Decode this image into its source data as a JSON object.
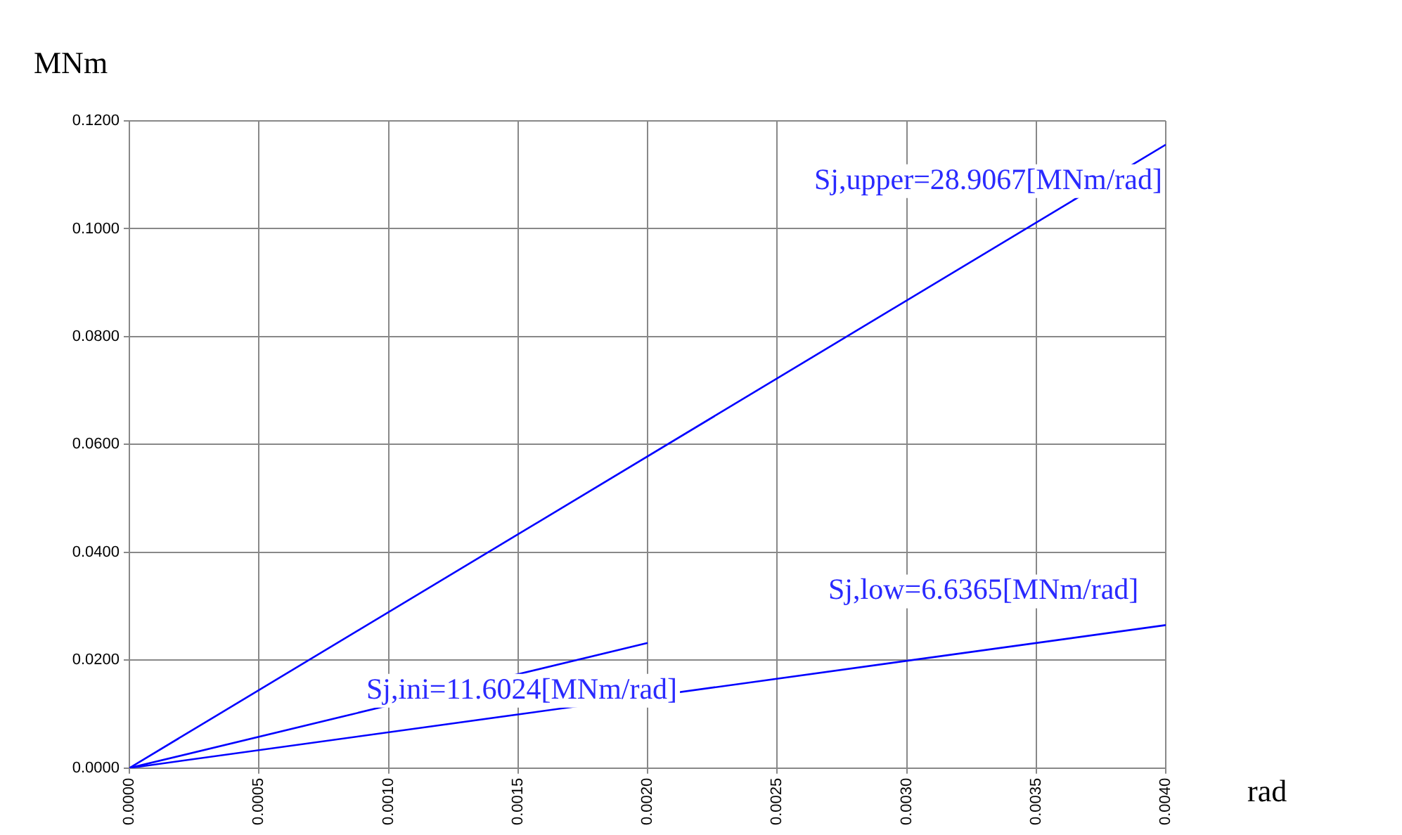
{
  "chart_data": {
    "type": "line",
    "xlabel": "rad",
    "ylabel": "MNm",
    "xlim": [
      0,
      0.004
    ],
    "ylim": [
      0,
      0.12
    ],
    "xticks": [
      {
        "value": 0,
        "label": "0.0000"
      },
      {
        "value": 0.0005,
        "label": "0.0005"
      },
      {
        "value": 0.001,
        "label": "0.0010"
      },
      {
        "value": 0.0015,
        "label": "0.0015"
      },
      {
        "value": 0.002,
        "label": "0.0020"
      },
      {
        "value": 0.0025,
        "label": "0.0025"
      },
      {
        "value": 0.003,
        "label": "0.0030"
      },
      {
        "value": 0.0035,
        "label": "0.0035"
      },
      {
        "value": 0.004,
        "label": "0.0040"
      }
    ],
    "yticks": [
      {
        "value": 0,
        "label": "0.0000"
      },
      {
        "value": 0.02,
        "label": "0.0200"
      },
      {
        "value": 0.04,
        "label": "0.0400"
      },
      {
        "value": 0.06,
        "label": "0.0600"
      },
      {
        "value": 0.08,
        "label": "0.0800"
      },
      {
        "value": 0.1,
        "label": "0.1000"
      },
      {
        "value": 0.12,
        "label": "0.1200"
      }
    ],
    "series": [
      {
        "color": "#0000ff",
        "x": [
          0,
          0.004
        ],
        "values": [
          0,
          0.1156
        ]
      },
      {
        "color": "#0000ff",
        "x": [
          0,
          0.002
        ],
        "values": [
          0,
          0.0232
        ]
      },
      {
        "color": "#0000ff",
        "x": [
          0,
          0.004
        ],
        "values": [
          0,
          0.0265
        ]
      }
    ],
    "annotations": [
      "Sj,upper=28.9067[MNm/rad]",
      "Sj,ini=11.6024[MNm/rad]",
      "Sj,low=6.6365[MNm/rad]"
    ],
    "grid": true,
    "legend": false,
    "marker": "none",
    "line_style": "solid"
  }
}
